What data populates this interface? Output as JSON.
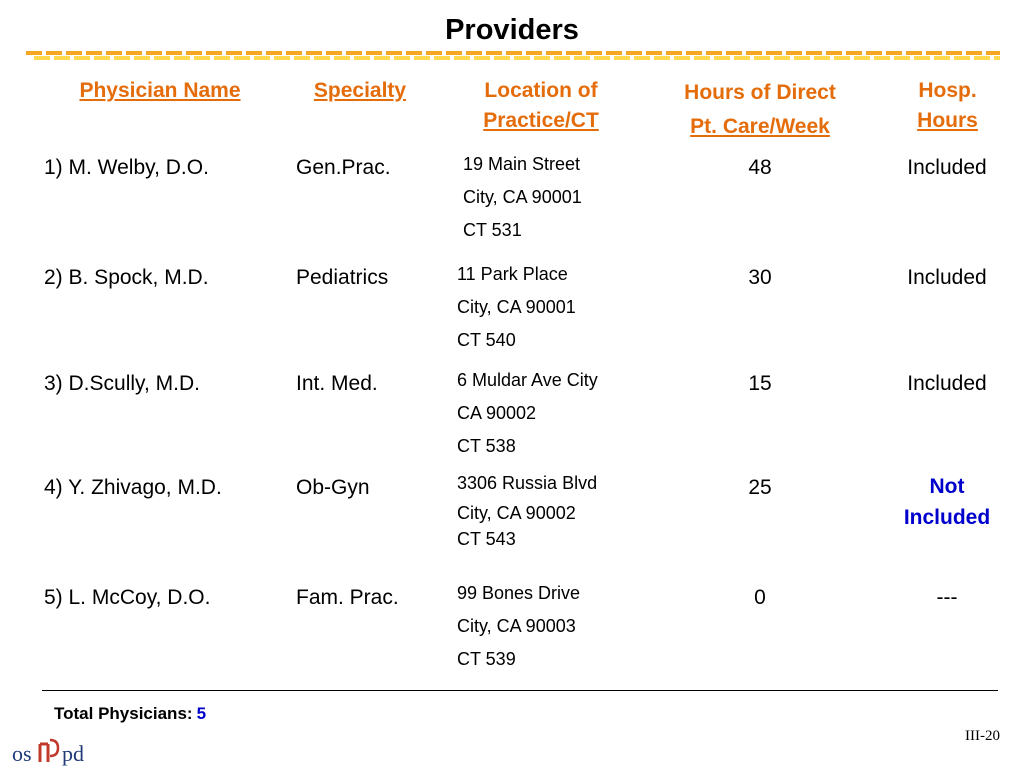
{
  "title": "Providers",
  "headers": {
    "physician_name": "Physician Name",
    "specialty": "Specialty",
    "location_line1": "Location of",
    "location_line2": "Practice/CT",
    "hours_line1": "Hours of Direct",
    "hours_line2": "Pt. Care/Week",
    "hosp_line1": "Hosp.",
    "hosp_line2": "Hours"
  },
  "rows": [
    {
      "name": "1) M. Welby, D.O.",
      "specialty": "Gen.Prac.",
      "addr1": "19 Main Street",
      "addr2": "City, CA 90001",
      "addr3": "CT 531",
      "hours": "48",
      "hosp1": "Included",
      "hosp2": ""
    },
    {
      "name": "2) B. Spock, M.D.",
      "specialty": "Pediatrics",
      "addr1": "11 Park Place",
      "addr2": "City, CA 90001",
      "addr3": "CT 540",
      "hours": "30",
      "hosp1": "Included",
      "hosp2": ""
    },
    {
      "name": "3) D.Scully, M.D.",
      "specialty": "Int. Med.",
      "addr1": "6 Muldar Ave City",
      "addr2": "CA 90002",
      "addr3": "CT 538",
      "hours": "15",
      "hosp1": "Included",
      "hosp2": ""
    },
    {
      "name": "4) Y. Zhivago, M.D.",
      "specialty": "Ob-Gyn",
      "addr1": "3306 Russia Blvd",
      "addr2": "City, CA 90002",
      "addr3": "CT 543",
      "hours": "25",
      "hosp1": "Not",
      "hosp2": "Included"
    },
    {
      "name": "5) L. McCoy, D.O.",
      "specialty": "Fam. Prac.",
      "addr1": "99 Bones Drive",
      "addr2": "City, CA 90003",
      "addr3": "CT 539",
      "hours": "0",
      "hosp1": "---",
      "hosp2": ""
    }
  ],
  "footer": {
    "total_label": "Total Physicians:",
    "total_value": "5",
    "page_number": "III-20",
    "logo_text": "oshpd"
  },
  "colors": {
    "header": "#e46c0a",
    "highlight": "#0000cc",
    "divider_orange": "#f5a623",
    "divider_yellow": "#ffd84d"
  }
}
